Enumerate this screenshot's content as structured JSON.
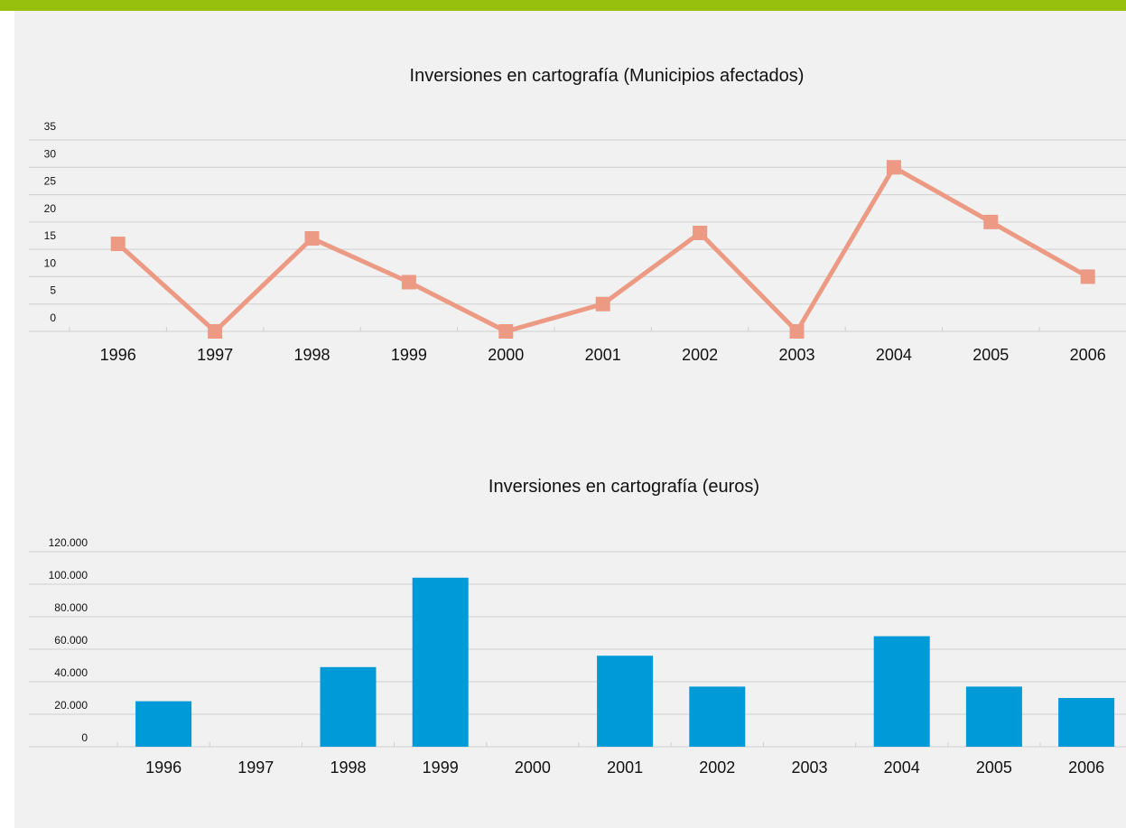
{
  "chart_data": [
    {
      "type": "line",
      "title": "Inversiones en cartografía (Municipios afectados)",
      "categories": [
        "1996",
        "1997",
        "1998",
        "1999",
        "2000",
        "2001",
        "2002",
        "2003",
        "2004",
        "2005",
        "2006"
      ],
      "values": [
        16,
        0,
        17,
        9,
        0,
        5,
        18,
        0,
        30,
        20,
        10
      ],
      "color": "#ec9a84",
      "ylim": [
        0,
        35
      ],
      "yticks": [
        0,
        5,
        10,
        15,
        20,
        25,
        30,
        35
      ],
      "grid": true
    },
    {
      "type": "bar",
      "title": "Inversiones en cartografía (euros)",
      "categories": [
        "1996",
        "1997",
        "1998",
        "1999",
        "2000",
        "2001",
        "2002",
        "2003",
        "2004",
        "2005",
        "2006"
      ],
      "values": [
        28000,
        0,
        49000,
        104000,
        0,
        56000,
        37000,
        0,
        68000,
        37000,
        30000
      ],
      "color": "#009ad8",
      "ylim": [
        0,
        120000
      ],
      "yticks": [
        0,
        {
          "value": 20000,
          "label": "20.000"
        },
        {
          "value": 40000,
          "label": "40.000"
        },
        {
          "value": 60000,
          "label": "60.000"
        },
        {
          "value": 80000,
          "label": "80.000"
        },
        {
          "value": 100000,
          "label": "100.000"
        },
        {
          "value": 120000,
          "label": "120.000"
        }
      ],
      "grid": true
    }
  ]
}
